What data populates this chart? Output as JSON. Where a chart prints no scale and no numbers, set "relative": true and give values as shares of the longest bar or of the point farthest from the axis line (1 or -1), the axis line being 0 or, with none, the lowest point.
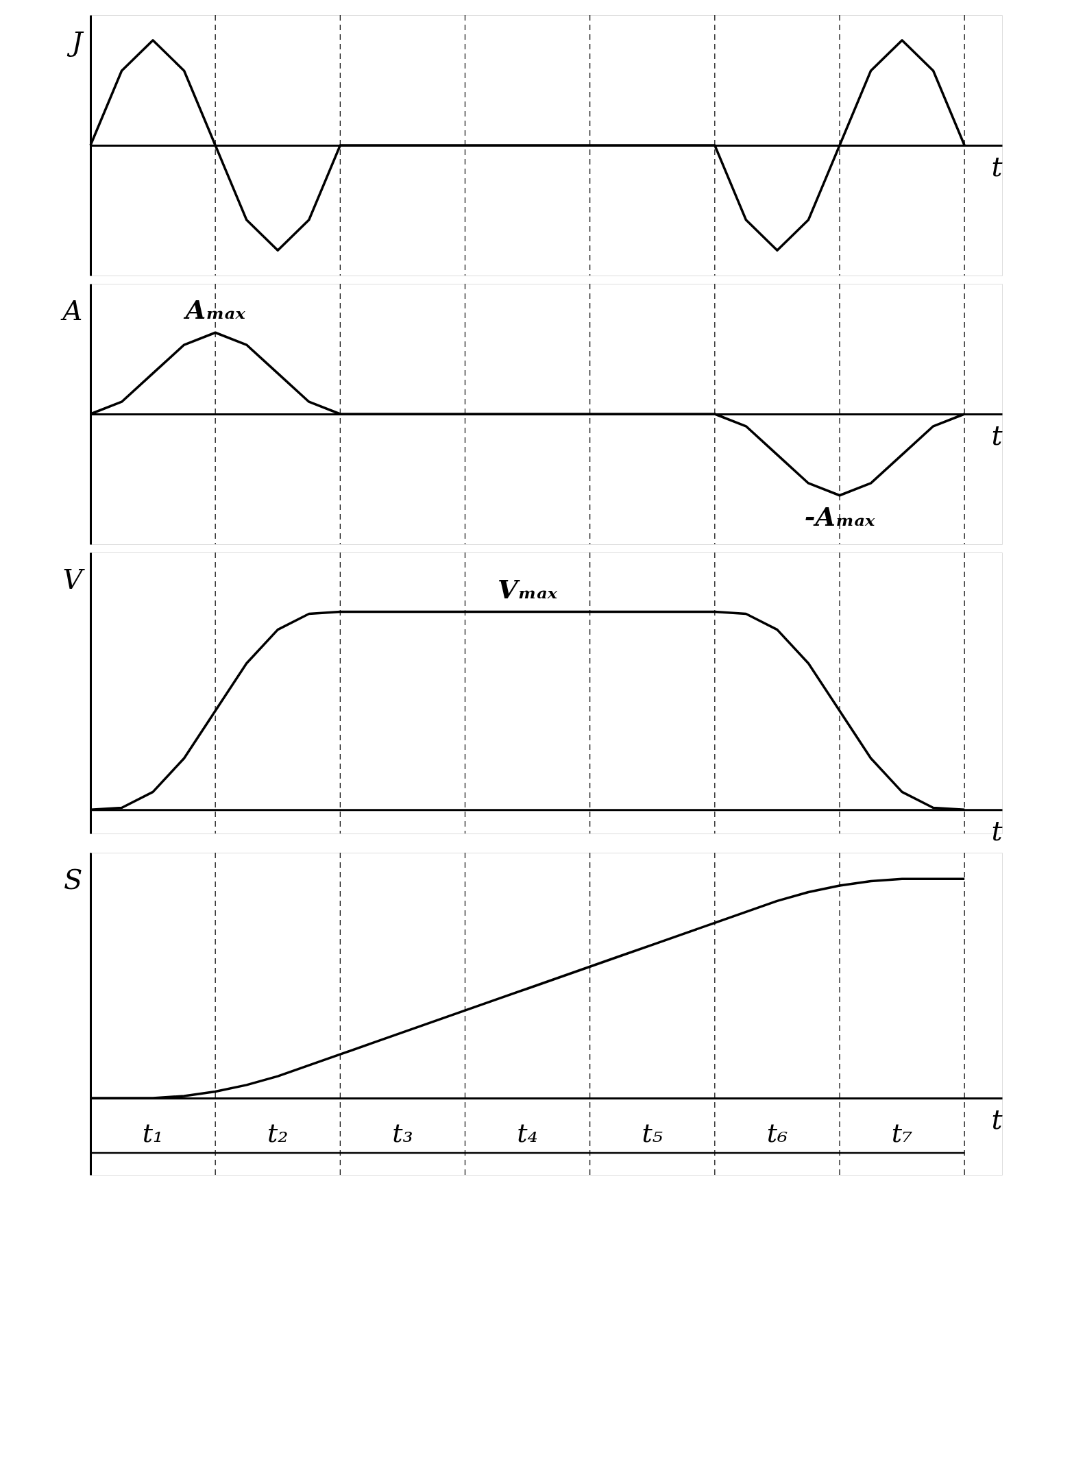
{
  "chart_data": [
    {
      "type": "line",
      "relative": true,
      "ylabel": "J",
      "xlabel": "t",
      "grid": "x",
      "line_style": "solid",
      "categories": [
        null,
        null,
        null,
        null,
        null,
        null,
        null,
        null,
        null,
        null,
        null,
        null,
        null,
        null,
        null,
        null,
        null,
        null,
        null,
        null,
        null,
        null,
        null,
        null,
        null,
        null,
        null,
        null,
        null
      ],
      "series": [
        {
          "color": "#000000",
          "values": [
            0,
            0.71,
            1,
            0.71,
            0,
            -0.71,
            -1,
            -0.71,
            0,
            0,
            0,
            0,
            0,
            0,
            0,
            0,
            0,
            0,
            0,
            0,
            0,
            -0.71,
            -1,
            -0.71,
            0,
            0.71,
            1,
            0.71,
            0
          ]
        }
      ]
    },
    {
      "type": "line",
      "relative": true,
      "ylabel": "A",
      "xlabel": "t",
      "grid": "x",
      "line_style": "solid",
      "categories": [
        null,
        null,
        null,
        null,
        null,
        null,
        null,
        null,
        null,
        null,
        null,
        null,
        null,
        null,
        null,
        null,
        null,
        null,
        null,
        null,
        null,
        null,
        null,
        null,
        null,
        null,
        null,
        null,
        null
      ],
      "series": [
        {
          "color": "#000000",
          "values": [
            0,
            0.15,
            0.5,
            0.85,
            1,
            0.85,
            0.5,
            0.15,
            0,
            0,
            0,
            0,
            0,
            0,
            0,
            0,
            0,
            0,
            0,
            0,
            0,
            -0.15,
            -0.5,
            -0.85,
            -1,
            -0.85,
            -0.5,
            -0.15,
            0
          ]
        }
      ],
      "annotations": [
        "Aₘₐₓ",
        "-Aₘₐₓ"
      ]
    },
    {
      "type": "line",
      "relative": true,
      "ylabel": "V",
      "xlabel": "t",
      "grid": "x",
      "line_style": "solid",
      "categories": [
        null,
        null,
        null,
        null,
        null,
        null,
        null,
        null,
        null,
        null,
        null,
        null,
        null,
        null,
        null,
        null,
        null,
        null,
        null,
        null,
        null,
        null,
        null,
        null,
        null,
        null,
        null,
        null,
        null
      ],
      "series": [
        {
          "color": "#000000",
          "values": [
            0,
            0.01,
            0.09,
            0.26,
            0.5,
            0.74,
            0.91,
            0.99,
            1,
            1,
            1,
            1,
            1,
            1,
            1,
            1,
            1,
            1,
            1,
            1,
            1,
            0.99,
            0.91,
            0.74,
            0.5,
            0.26,
            0.09,
            0.01,
            0
          ]
        }
      ],
      "annotations": [
        "Vₘₐₓ"
      ]
    },
    {
      "type": "line",
      "relative": true,
      "ylabel": "S",
      "xlabel": "t",
      "grid": "x",
      "line_style": "solid",
      "categories": [
        null,
        null,
        null,
        null,
        null,
        null,
        null,
        null,
        null,
        null,
        null,
        null,
        null,
        null,
        null,
        null,
        null,
        null,
        null,
        null,
        null,
        null,
        null,
        null,
        null,
        null,
        null,
        null,
        null
      ],
      "series": [
        {
          "color": "#000000",
          "values": [
            0,
            0,
            0,
            0.01,
            0.03,
            0.06,
            0.1,
            0.15,
            0.2,
            0.25,
            0.3,
            0.35,
            0.4,
            0.45,
            0.5,
            0.55,
            0.6,
            0.65,
            0.7,
            0.75,
            0.8,
            0.85,
            0.9,
            0.94,
            0.97,
            0.99,
            1,
            1,
            1
          ]
        }
      ],
      "annotations": [
        "t₁",
        "t₂",
        "t₃",
        "t₄",
        "t₅",
        "t₆",
        "t₇"
      ]
    }
  ]
}
